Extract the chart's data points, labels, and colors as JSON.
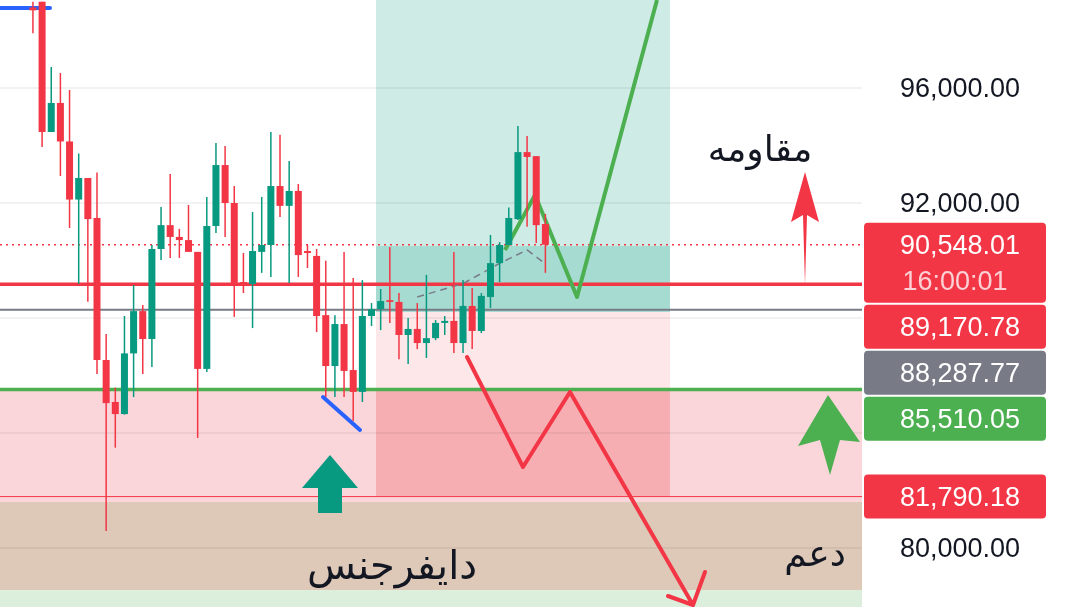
{
  "chart_data": {
    "type": "candlestick",
    "categories": [
      null,
      null,
      null,
      null,
      null,
      null,
      null,
      null,
      null,
      null,
      null,
      null,
      null,
      null,
      null,
      null,
      null,
      null,
      null,
      null,
      null,
      null,
      null,
      null,
      null,
      null,
      null,
      null,
      null,
      null,
      null,
      null,
      null,
      null,
      null,
      null,
      null,
      null,
      null,
      null,
      null,
      null,
      null,
      null,
      null,
      null,
      null,
      null,
      null,
      null,
      null,
      null,
      null,
      null,
      null,
      null,
      null,
      null,
      null,
      null,
      null,
      null,
      null,
      null,
      null,
      null,
      null,
      null,
      null,
      null,
      null,
      null,
      null,
      null,
      null,
      null,
      null,
      null,
      null,
      null,
      null,
      null,
      null,
      null,
      null,
      null,
      null,
      null,
      null,
      null,
      null,
      null,
      null,
      null
    ],
    "ohlc": [
      null,
      null,
      null,
      [
        98800,
        99000,
        97900,
        98700
      ],
      [
        99000,
        99000,
        93950,
        94470
      ],
      [
        94470,
        96730,
        94470,
        95480
      ],
      [
        95480,
        96520,
        92940,
        94140
      ],
      [
        94140,
        95930,
        91130,
        92120
      ],
      [
        92120,
        93720,
        89190,
        92870
      ],
      [
        92870,
        92870,
        88570,
        91440
      ],
      [
        91480,
        93060,
        86050,
        86540
      ],
      [
        86540,
        87440,
        80590,
        85040
      ],
      [
        85080,
        85580,
        83490,
        84660
      ],
      [
        84660,
        88070,
        84640,
        86770
      ],
      [
        86770,
        89150,
        85250,
        88240
      ],
      [
        88240,
        88450,
        86050,
        87270
      ],
      [
        87270,
        90540,
        86300,
        90400
      ],
      [
        90400,
        91860,
        90020,
        91230
      ],
      [
        91230,
        93010,
        90090,
        90820
      ],
      [
        90820,
        91100,
        90090,
        90710
      ],
      [
        90710,
        91930,
        90300,
        90300
      ],
      [
        90300,
        90300,
        83830,
        86230
      ],
      [
        86230,
        92210,
        86120,
        91200
      ],
      [
        91200,
        94090,
        90960,
        93320
      ],
      [
        93320,
        93980,
        90820,
        92000
      ],
      [
        92000,
        92590,
        88040,
        89220
      ],
      [
        89250,
        90260,
        88870,
        89180
      ],
      [
        89180,
        91690,
        87650,
        90330
      ],
      [
        90300,
        92210,
        89570,
        90540
      ],
      [
        90540,
        94470,
        89430,
        92590
      ],
      [
        92590,
        94370,
        91510,
        91900
      ],
      [
        91900,
        93460,
        89220,
        92420
      ],
      [
        92420,
        92660,
        89430,
        90190
      ],
      [
        90330,
        90540,
        89740,
        90260
      ],
      [
        90160,
        90400,
        87510,
        88070
      ],
      [
        88100,
        89990,
        85250,
        86330
      ],
      [
        86330,
        88100,
        85250,
        87790
      ],
      [
        87790,
        90300,
        85250,
        86160
      ],
      [
        86190,
        89390,
        84420,
        85430
      ],
      [
        85430,
        89320,
        85080,
        88070
      ],
      [
        88070,
        88520,
        87720,
        88310
      ],
      [
        88310,
        89010,
        87580,
        88590
      ],
      [
        88620,
        90470,
        87830,
        88560
      ],
      [
        88560,
        88870,
        86570,
        87410
      ],
      [
        87410,
        88000,
        86400,
        87620
      ],
      [
        87620,
        88520,
        86920,
        87130
      ],
      [
        87130,
        89500,
        86610,
        87300
      ],
      [
        87300,
        87930,
        87230,
        87830
      ],
      [
        87830,
        88070,
        87410,
        87900
      ],
      [
        87900,
        90300,
        86780,
        87130
      ],
      [
        87130,
        89320,
        86780,
        88420
      ],
      [
        88420,
        89040,
        86920,
        87550
      ],
      [
        87550,
        88870,
        87480,
        88770
      ],
      [
        88730,
        90890,
        88350,
        89910
      ],
      [
        89910,
        90640,
        89250,
        90540
      ],
      [
        90540,
        91840,
        90540,
        91480
      ],
      [
        91440,
        94680,
        91410,
        93770
      ],
      [
        93770,
        94330,
        91170,
        93600
      ],
      [
        93630,
        93630,
        90610,
        91230
      ],
      [
        91270,
        91620,
        89570,
        90550
      ],
      null,
      null,
      null,
      null,
      null,
      null,
      null,
      null,
      null,
      null,
      null,
      null,
      null,
      null,
      null,
      null,
      null,
      null,
      null,
      null,
      null,
      null,
      null,
      null,
      null,
      null,
      null,
      null,
      null,
      null,
      null,
      null,
      null,
      null
    ],
    "colors": [
      null,
      null,
      null,
      "#f23645",
      "#f23645",
      "#089981",
      "#f23645",
      "#f23645",
      "#089981",
      "#f23645",
      "#f23645",
      "#f23645",
      "#f23645",
      "#089981",
      "#089981",
      "#f23645",
      "#089981",
      "#089981",
      "#f23645",
      "#f23645",
      "#f23645",
      "#f23645",
      "#089981",
      "#089981",
      "#f23645",
      "#f23645",
      "#f23645",
      "#089981",
      "#089981",
      "#089981",
      "#f23645",
      "#089981",
      "#f23645",
      "#f23645",
      "#f23645",
      "#f23645",
      "#089981",
      "#f23645",
      "#f23645",
      "#089981",
      "#089981",
      "#089981",
      "#f23645",
      "#f23645",
      "#089981",
      "#f23645",
      "#089981",
      "#089981",
      "#089981",
      "#f23645",
      "#089981",
      "#f23645",
      "#089981",
      "#089981",
      "#089981",
      "#089981",
      "#089981",
      "#f23645",
      "#f23645",
      "#f23645",
      null,
      null,
      null,
      null,
      null,
      null,
      null,
      null,
      null,
      null,
      null,
      null,
      null,
      null,
      null,
      null,
      null,
      null,
      null,
      null,
      null,
      null,
      null,
      null,
      null,
      null,
      null,
      null,
      null,
      null,
      null,
      null,
      null,
      null
    ],
    "series": [
      {
        "type": "line",
        "color": "#787b86",
        "line_style": "dashed",
        "values": [
          null,
          null,
          null,
          null,
          null,
          null,
          null,
          null,
          null,
          null,
          null,
          null,
          null,
          null,
          null,
          null,
          null,
          null,
          null,
          null,
          null,
          null,
          null,
          null,
          null,
          null,
          null,
          null,
          null,
          null,
          null,
          null,
          null,
          null,
          null,
          null,
          null,
          null,
          null,
          null,
          null,
          null,
          null,
          null,
          null,
          88730,
          null,
          null,
          null,
          null,
          89200,
          null,
          null,
          null,
          89900,
          null,
          null,
          90370,
          null,
          89880,
          null,
          null,
          null,
          null,
          null,
          null,
          null,
          null,
          null,
          null,
          null,
          null,
          null,
          null,
          null,
          null,
          null,
          null,
          null,
          null,
          null,
          null,
          null,
          null,
          null,
          null,
          null,
          null,
          null,
          null,
          null,
          null,
          null,
          null
        ]
      }
    ],
    "ylim": [
      77950,
      99060
    ],
    "yticks": [
      {
        "value": 80000,
        "label": "80,000.00"
      },
      {
        "value": 84000,
        "label": null
      },
      {
        "value": 88000,
        "label": null
      },
      {
        "value": 92000,
        "label": "92,000.00"
      },
      {
        "value": 96000,
        "label": "96,000.00"
      }
    ],
    "grid": "y",
    "bands": [
      {
        "axis": "y",
        "from": 81600,
        "to": 85510.05,
        "color": "#fad6da"
      },
      {
        "axis": "y",
        "from": 78540,
        "to": 81600,
        "color": "#dec8b8"
      },
      {
        "axis": "y",
        "from": 77950,
        "to": 78540,
        "color": "#dcefdc"
      }
    ],
    "ref_lines": [
      {
        "axis": "y",
        "value": 90548.01,
        "label": "90,548.01",
        "color": "#f23645",
        "line_style": "dotted"
      },
      {
        "axis": "y",
        "value": 89170.78,
        "label": "89,170.78",
        "color": "#f23645",
        "line_style": "solid"
      },
      {
        "axis": "y",
        "value": 88287.77,
        "label": "88,287.77",
        "color": "#787b86",
        "line_style": "solid"
      },
      {
        "axis": "y",
        "value": 85510.05,
        "label": "85,510.05",
        "color": "#4caf50",
        "line_style": "solid"
      },
      {
        "axis": "y",
        "value": 81790.18,
        "label": "81,790.18",
        "color": "#f23645",
        "line_style": "solid"
      }
    ],
    "annotations": [
      "مقاومه",
      "دايفرجنس",
      "دعم",
      "16:00:01"
    ]
  }
}
